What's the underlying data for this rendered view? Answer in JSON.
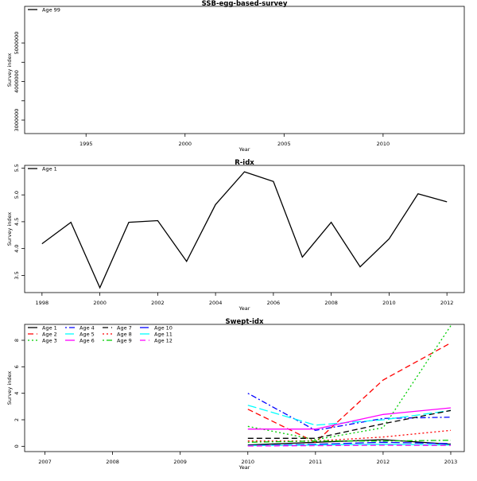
{
  "chart_data": [
    {
      "type": "line",
      "title": "SSB-egg-based-survey",
      "xlabel": "Year",
      "ylabel": "Survey index",
      "xlim": [
        1991.9,
        2014.1
      ],
      "ylim": [
        2650000,
        5950000
      ],
      "xticks": [
        "1995",
        "2000",
        "2005",
        "2010"
      ],
      "yticks": [
        "3000000",
        "4000000",
        "5000000"
      ],
      "grid": false,
      "legend_position": "top-left",
      "series": [
        {
          "name": "Age 99",
          "color": "#000000",
          "dash": "solid",
          "x": [],
          "y": []
        }
      ]
    },
    {
      "type": "line",
      "title": "R-idx",
      "xlabel": "Year",
      "ylabel": "Survey index",
      "xlim": [
        1997.4,
        2012.6
      ],
      "ylim": [
        3.18,
        5.55
      ],
      "xticks": [
        "1998",
        "2000",
        "2002",
        "2004",
        "2006",
        "2008",
        "2010",
        "2012"
      ],
      "yticks": [
        "3.5",
        "4.0",
        "4.5",
        "5.0",
        "5.5"
      ],
      "grid": false,
      "legend_position": "top-left",
      "series": [
        {
          "name": "Age 1",
          "color": "#000000",
          "dash": "solid",
          "x": [
            1998,
            1999,
            2000,
            2001,
            2002,
            2003,
            2004,
            2005,
            2006,
            2007,
            2008,
            2009,
            2010,
            2011,
            2012
          ],
          "y": [
            4.09,
            4.49,
            3.27,
            4.49,
            4.52,
            3.76,
            4.82,
            5.43,
            5.25,
            3.84,
            4.49,
            3.66,
            4.18,
            5.02,
            4.87
          ]
        }
      ]
    },
    {
      "type": "line",
      "title": "Swept-idx",
      "xlabel": "Year",
      "ylabel": "Survey index",
      "xlim": [
        2006.7,
        2013.2
      ],
      "ylim": [
        -0.4,
        9.2
      ],
      "xticks": [
        "2007",
        "2008",
        "2009",
        "2010",
        "2011",
        "2012",
        "2013"
      ],
      "yticks": [
        "0",
        "2",
        "4",
        "6",
        "8"
      ],
      "grid": false,
      "legend_position": "top-left",
      "series": [
        {
          "name": "Age 1",
          "color": "#000000",
          "dash": "solid",
          "x": [
            2010,
            2011,
            2012,
            2013
          ],
          "y": [
            0.1,
            0.3,
            0.5,
            0.15
          ]
        },
        {
          "name": "Age 2",
          "color": "#ff0000",
          "dash": "dashed",
          "x": [
            2010,
            2011,
            2012,
            2013
          ],
          "y": [
            2.8,
            0.3,
            5.0,
            7.8
          ]
        },
        {
          "name": "Age 3",
          "color": "#00cd00",
          "dash": "dotted",
          "x": [
            2010,
            2011,
            2012,
            2013
          ],
          "y": [
            1.5,
            0.5,
            1.4,
            9.1
          ]
        },
        {
          "name": "Age 4",
          "color": "#0000ff",
          "dash": "dotdash",
          "x": [
            2010,
            2011,
            2012,
            2013
          ],
          "y": [
            4.0,
            1.2,
            2.1,
            2.2
          ]
        },
        {
          "name": "Age 5",
          "color": "#00ffff",
          "dash": "longdash",
          "x": [
            2010,
            2011,
            2012,
            2013
          ],
          "y": [
            3.1,
            1.6,
            2.0,
            2.7
          ]
        },
        {
          "name": "Age 6",
          "color": "#ff00ff",
          "dash": "solid",
          "x": [
            2010,
            2011,
            2012,
            2013
          ],
          "y": [
            1.3,
            1.3,
            2.4,
            2.9
          ]
        },
        {
          "name": "Age 7",
          "color": "#000000",
          "dash": "dashed",
          "x": [
            2010,
            2011,
            2012,
            2013
          ],
          "y": [
            0.6,
            0.6,
            1.7,
            2.7
          ]
        },
        {
          "name": "Age 8",
          "color": "#ff0000",
          "dash": "dotted",
          "x": [
            2010,
            2011,
            2012,
            2013
          ],
          "y": [
            0.4,
            0.4,
            0.7,
            1.2
          ]
        },
        {
          "name": "Age 9",
          "color": "#00cd00",
          "dash": "dotdash",
          "x": [
            2010,
            2011,
            2012,
            2013
          ],
          "y": [
            0.3,
            0.4,
            0.4,
            0.45
          ]
        },
        {
          "name": "Age 10",
          "color": "#0000ff",
          "dash": "longdash",
          "x": [
            2010,
            2011,
            2012,
            2013
          ],
          "y": [
            0.05,
            0.15,
            0.3,
            0.2
          ]
        },
        {
          "name": "Age 11",
          "color": "#00ffff",
          "dash": "solid",
          "x": [
            2010,
            2011,
            2012,
            2013
          ],
          "y": [
            0.05,
            0.1,
            0.15,
            0.1
          ]
        },
        {
          "name": "Age 12",
          "color": "#ff00ff",
          "dash": "dashed",
          "x": [
            2010,
            2011,
            2012,
            2013
          ],
          "y": [
            0.02,
            0.05,
            0.08,
            0.06
          ]
        }
      ]
    }
  ]
}
